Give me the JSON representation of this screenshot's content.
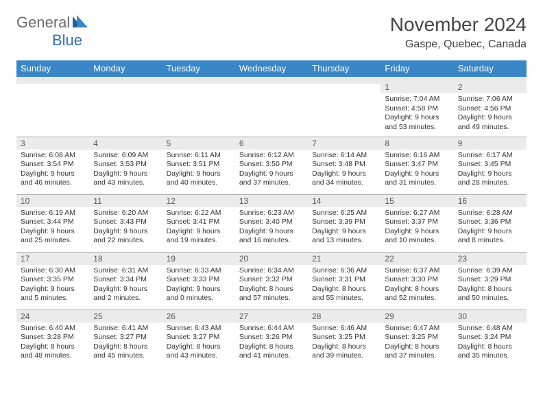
{
  "brand": {
    "part1": "General",
    "part2": "Blue"
  },
  "title": "November 2024",
  "location": "Gaspe, Quebec, Canada",
  "colors": {
    "header_bg": "#3a87c8",
    "header_text": "#ffffff",
    "daynum_bg": "#ebebeb",
    "border": "#b0b0b0",
    "logo_gray": "#6b6b6b",
    "logo_blue": "#2f6fb5"
  },
  "day_headers": [
    "Sunday",
    "Monday",
    "Tuesday",
    "Wednesday",
    "Thursday",
    "Friday",
    "Saturday"
  ],
  "weeks": [
    [
      {
        "n": "",
        "sunrise": "",
        "sunset": "",
        "daylight": ""
      },
      {
        "n": "",
        "sunrise": "",
        "sunset": "",
        "daylight": ""
      },
      {
        "n": "",
        "sunrise": "",
        "sunset": "",
        "daylight": ""
      },
      {
        "n": "",
        "sunrise": "",
        "sunset": "",
        "daylight": ""
      },
      {
        "n": "",
        "sunrise": "",
        "sunset": "",
        "daylight": ""
      },
      {
        "n": "1",
        "sunrise": "Sunrise: 7:04 AM",
        "sunset": "Sunset: 4:58 PM",
        "daylight": "Daylight: 9 hours and 53 minutes."
      },
      {
        "n": "2",
        "sunrise": "Sunrise: 7:06 AM",
        "sunset": "Sunset: 4:56 PM",
        "daylight": "Daylight: 9 hours and 49 minutes."
      }
    ],
    [
      {
        "n": "3",
        "sunrise": "Sunrise: 6:08 AM",
        "sunset": "Sunset: 3:54 PM",
        "daylight": "Daylight: 9 hours and 46 minutes."
      },
      {
        "n": "4",
        "sunrise": "Sunrise: 6:09 AM",
        "sunset": "Sunset: 3:53 PM",
        "daylight": "Daylight: 9 hours and 43 minutes."
      },
      {
        "n": "5",
        "sunrise": "Sunrise: 6:11 AM",
        "sunset": "Sunset: 3:51 PM",
        "daylight": "Daylight: 9 hours and 40 minutes."
      },
      {
        "n": "6",
        "sunrise": "Sunrise: 6:12 AM",
        "sunset": "Sunset: 3:50 PM",
        "daylight": "Daylight: 9 hours and 37 minutes."
      },
      {
        "n": "7",
        "sunrise": "Sunrise: 6:14 AM",
        "sunset": "Sunset: 3:48 PM",
        "daylight": "Daylight: 9 hours and 34 minutes."
      },
      {
        "n": "8",
        "sunrise": "Sunrise: 6:16 AM",
        "sunset": "Sunset: 3:47 PM",
        "daylight": "Daylight: 9 hours and 31 minutes."
      },
      {
        "n": "9",
        "sunrise": "Sunrise: 6:17 AM",
        "sunset": "Sunset: 3:45 PM",
        "daylight": "Daylight: 9 hours and 28 minutes."
      }
    ],
    [
      {
        "n": "10",
        "sunrise": "Sunrise: 6:19 AM",
        "sunset": "Sunset: 3:44 PM",
        "daylight": "Daylight: 9 hours and 25 minutes."
      },
      {
        "n": "11",
        "sunrise": "Sunrise: 6:20 AM",
        "sunset": "Sunset: 3:43 PM",
        "daylight": "Daylight: 9 hours and 22 minutes."
      },
      {
        "n": "12",
        "sunrise": "Sunrise: 6:22 AM",
        "sunset": "Sunset: 3:41 PM",
        "daylight": "Daylight: 9 hours and 19 minutes."
      },
      {
        "n": "13",
        "sunrise": "Sunrise: 6:23 AM",
        "sunset": "Sunset: 3:40 PM",
        "daylight": "Daylight: 9 hours and 16 minutes."
      },
      {
        "n": "14",
        "sunrise": "Sunrise: 6:25 AM",
        "sunset": "Sunset: 3:39 PM",
        "daylight": "Daylight: 9 hours and 13 minutes."
      },
      {
        "n": "15",
        "sunrise": "Sunrise: 6:27 AM",
        "sunset": "Sunset: 3:37 PM",
        "daylight": "Daylight: 9 hours and 10 minutes."
      },
      {
        "n": "16",
        "sunrise": "Sunrise: 6:28 AM",
        "sunset": "Sunset: 3:36 PM",
        "daylight": "Daylight: 9 hours and 8 minutes."
      }
    ],
    [
      {
        "n": "17",
        "sunrise": "Sunrise: 6:30 AM",
        "sunset": "Sunset: 3:35 PM",
        "daylight": "Daylight: 9 hours and 5 minutes."
      },
      {
        "n": "18",
        "sunrise": "Sunrise: 6:31 AM",
        "sunset": "Sunset: 3:34 PM",
        "daylight": "Daylight: 9 hours and 2 minutes."
      },
      {
        "n": "19",
        "sunrise": "Sunrise: 6:33 AM",
        "sunset": "Sunset: 3:33 PM",
        "daylight": "Daylight: 9 hours and 0 minutes."
      },
      {
        "n": "20",
        "sunrise": "Sunrise: 6:34 AM",
        "sunset": "Sunset: 3:32 PM",
        "daylight": "Daylight: 8 hours and 57 minutes."
      },
      {
        "n": "21",
        "sunrise": "Sunrise: 6:36 AM",
        "sunset": "Sunset: 3:31 PM",
        "daylight": "Daylight: 8 hours and 55 minutes."
      },
      {
        "n": "22",
        "sunrise": "Sunrise: 6:37 AM",
        "sunset": "Sunset: 3:30 PM",
        "daylight": "Daylight: 8 hours and 52 minutes."
      },
      {
        "n": "23",
        "sunrise": "Sunrise: 6:39 AM",
        "sunset": "Sunset: 3:29 PM",
        "daylight": "Daylight: 8 hours and 50 minutes."
      }
    ],
    [
      {
        "n": "24",
        "sunrise": "Sunrise: 6:40 AM",
        "sunset": "Sunset: 3:28 PM",
        "daylight": "Daylight: 8 hours and 48 minutes."
      },
      {
        "n": "25",
        "sunrise": "Sunrise: 6:41 AM",
        "sunset": "Sunset: 3:27 PM",
        "daylight": "Daylight: 8 hours and 45 minutes."
      },
      {
        "n": "26",
        "sunrise": "Sunrise: 6:43 AM",
        "sunset": "Sunset: 3:27 PM",
        "daylight": "Daylight: 8 hours and 43 minutes."
      },
      {
        "n": "27",
        "sunrise": "Sunrise: 6:44 AM",
        "sunset": "Sunset: 3:26 PM",
        "daylight": "Daylight: 8 hours and 41 minutes."
      },
      {
        "n": "28",
        "sunrise": "Sunrise: 6:46 AM",
        "sunset": "Sunset: 3:25 PM",
        "daylight": "Daylight: 8 hours and 39 minutes."
      },
      {
        "n": "29",
        "sunrise": "Sunrise: 6:47 AM",
        "sunset": "Sunset: 3:25 PM",
        "daylight": "Daylight: 8 hours and 37 minutes."
      },
      {
        "n": "30",
        "sunrise": "Sunrise: 6:48 AM",
        "sunset": "Sunset: 3:24 PM",
        "daylight": "Daylight: 8 hours and 35 minutes."
      }
    ]
  ]
}
